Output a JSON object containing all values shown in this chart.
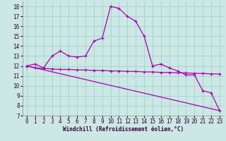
{
  "xlabel": "Windchill (Refroidissement éolien,°C)",
  "bg_color": "#cce8e4",
  "line_color": "#aa00aa",
  "grid_color": "#99cccc",
  "ylim": [
    7,
    18.5
  ],
  "xlim": [
    -0.5,
    23.5
  ],
  "yticks": [
    7,
    8,
    9,
    10,
    11,
    12,
    13,
    14,
    15,
    16,
    17,
    18
  ],
  "xticks": [
    0,
    1,
    2,
    3,
    4,
    5,
    6,
    7,
    8,
    9,
    10,
    11,
    12,
    13,
    14,
    15,
    16,
    17,
    18,
    19,
    20,
    21,
    22,
    23
  ],
  "line1_x": [
    0,
    1,
    2,
    3,
    4,
    5,
    6,
    7,
    8,
    9,
    10,
    11,
    12,
    13,
    14,
    15,
    16,
    17,
    18,
    19,
    20,
    21,
    22,
    23
  ],
  "line1_y": [
    12,
    12.2,
    11.8,
    13.0,
    13.5,
    13.0,
    12.9,
    13.0,
    14.5,
    14.8,
    18.0,
    17.8,
    17.0,
    16.5,
    15.0,
    12.0,
    12.2,
    11.8,
    11.5,
    11.1,
    11.1,
    9.5,
    9.3,
    7.5
  ],
  "line2_x": [
    0,
    1,
    2,
    3,
    4,
    5,
    6,
    7,
    8,
    9,
    10,
    11,
    12,
    13,
    14,
    15,
    16,
    17,
    18,
    19,
    20,
    21,
    22,
    23
  ],
  "line2_y": [
    12.0,
    11.8,
    11.75,
    11.7,
    11.65,
    11.65,
    11.6,
    11.6,
    11.55,
    11.55,
    11.5,
    11.5,
    11.45,
    11.45,
    11.4,
    11.4,
    11.35,
    11.35,
    11.3,
    11.3,
    11.25,
    11.25,
    11.2,
    11.2
  ],
  "line3_x": [
    0,
    23
  ],
  "line3_y": [
    12.0,
    7.5
  ],
  "tick_fontsize": 5.5,
  "xlabel_fontsize": 5.5
}
